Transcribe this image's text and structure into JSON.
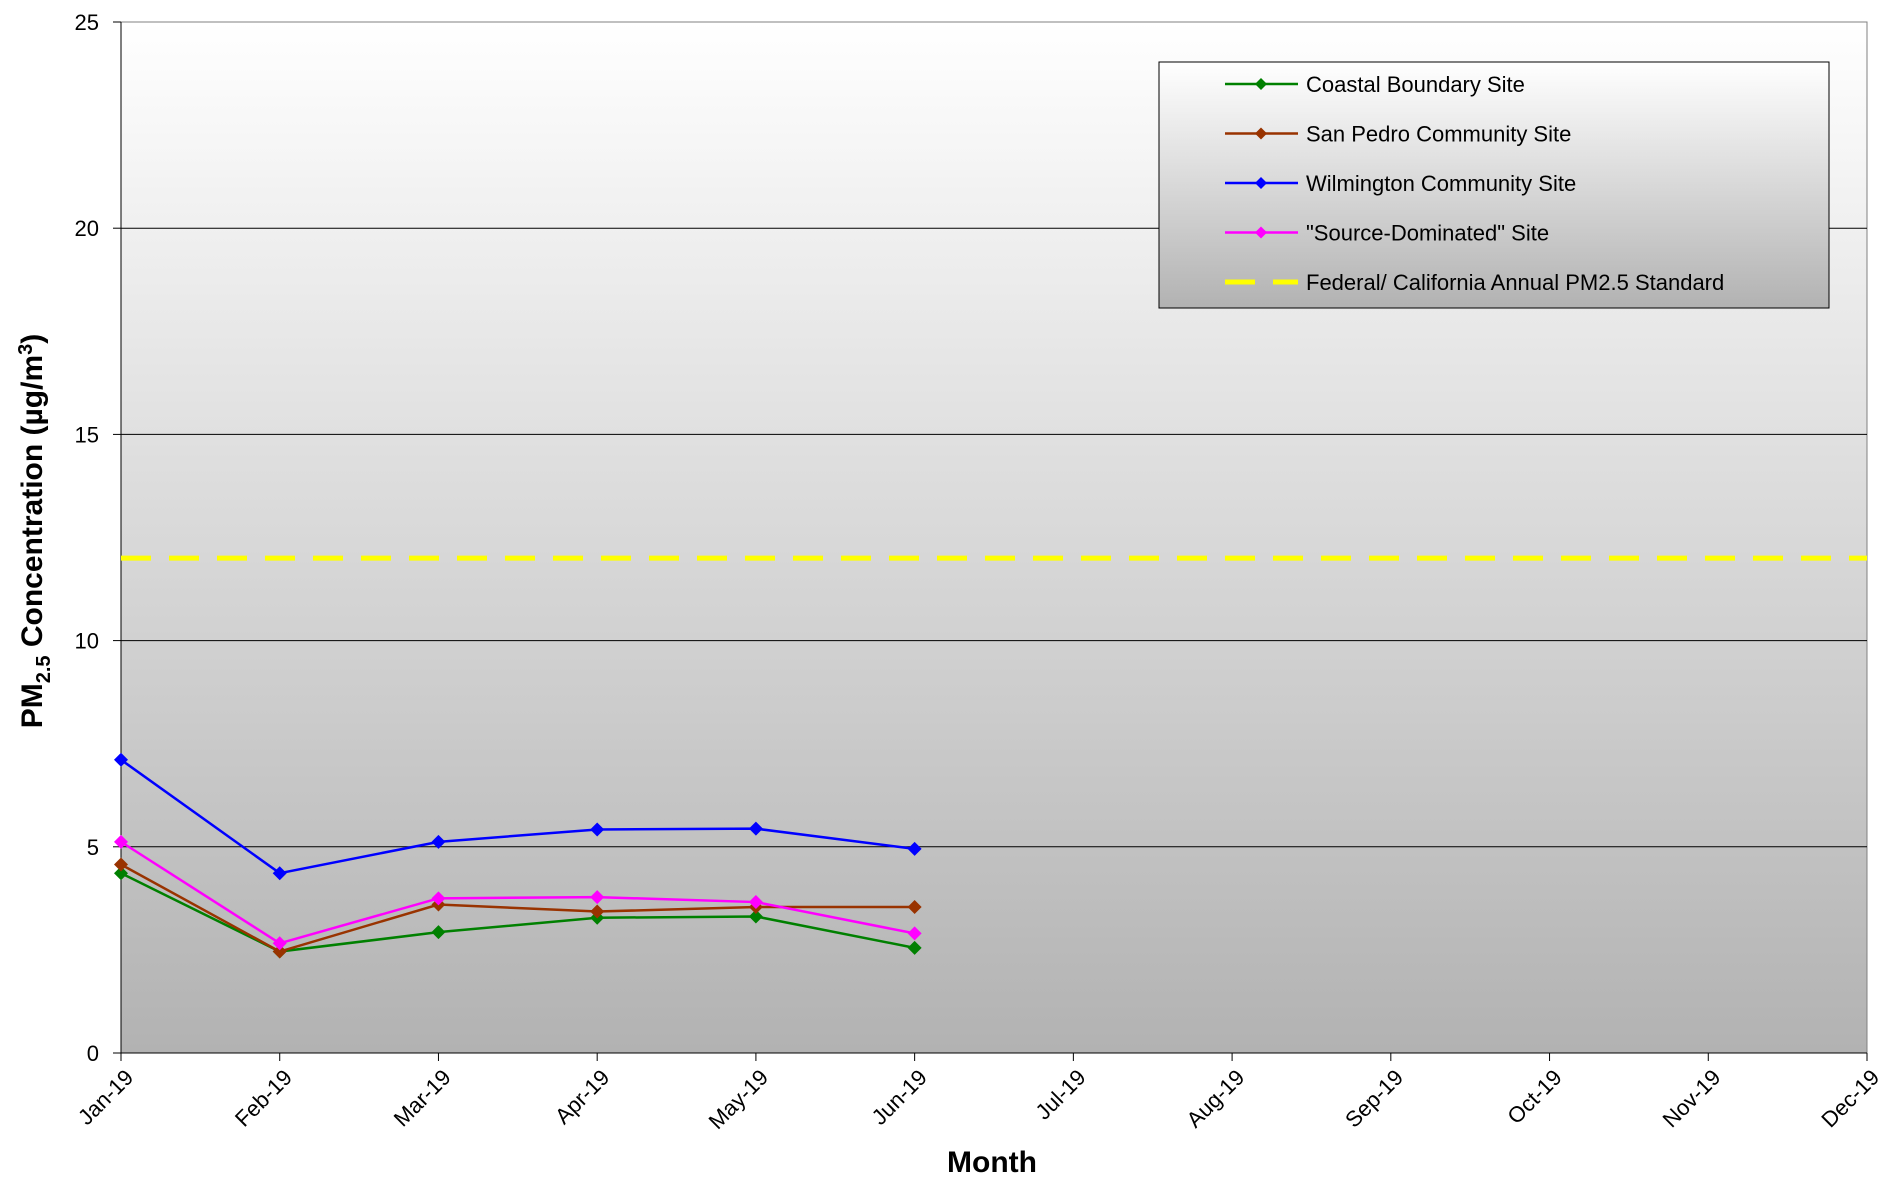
{
  "chart_data": {
    "type": "line",
    "xlabel": "Month",
    "ylabel_parts": [
      "PM",
      "2.5",
      " Concentration (µg/m",
      "3",
      ")"
    ],
    "categories": [
      "Jan-19",
      "Feb-19",
      "Mar-19",
      "Apr-19",
      "May-19",
      "Jun-19",
      "Jul-19",
      "Aug-19",
      "Sep-19",
      "Oct-19",
      "Nov-19",
      "Dec-19"
    ],
    "series": [
      {
        "name": "Coastal Boundary Site",
        "color": "#008000",
        "dashed": false,
        "markers": true,
        "values": [
          4.36,
          2.46,
          2.93,
          3.28,
          3.31,
          2.55,
          null,
          null,
          null,
          null,
          null,
          null
        ]
      },
      {
        "name": "San Pedro Community Site",
        "color": "#993300",
        "dashed": false,
        "markers": true,
        "values": [
          4.57,
          2.46,
          3.6,
          3.43,
          3.54,
          3.54,
          null,
          null,
          null,
          null,
          null,
          null
        ]
      },
      {
        "name": "Wilmington Community Site",
        "color": "#0000ff",
        "dashed": false,
        "markers": true,
        "values": [
          7.11,
          4.36,
          5.12,
          5.42,
          5.44,
          4.95,
          null,
          null,
          null,
          null,
          null,
          null
        ]
      },
      {
        "name": "\"Source-Dominated\" Site",
        "color": "#ff00ff",
        "dashed": false,
        "markers": true,
        "values": [
          5.12,
          2.66,
          3.75,
          3.78,
          3.66,
          2.9,
          null,
          null,
          null,
          null,
          null,
          null
        ]
      },
      {
        "name": "Federal/ California Annual PM2.5 Standard",
        "color": "#ffff00",
        "dashed": true,
        "markers": false,
        "values": [
          12,
          12,
          12,
          12,
          12,
          12,
          12,
          12,
          12,
          12,
          12,
          12
        ]
      }
    ],
    "ylim": [
      0,
      25
    ],
    "yticks": [
      0,
      5,
      10,
      15,
      20,
      25
    ],
    "grid": true,
    "legend": "upper right"
  }
}
